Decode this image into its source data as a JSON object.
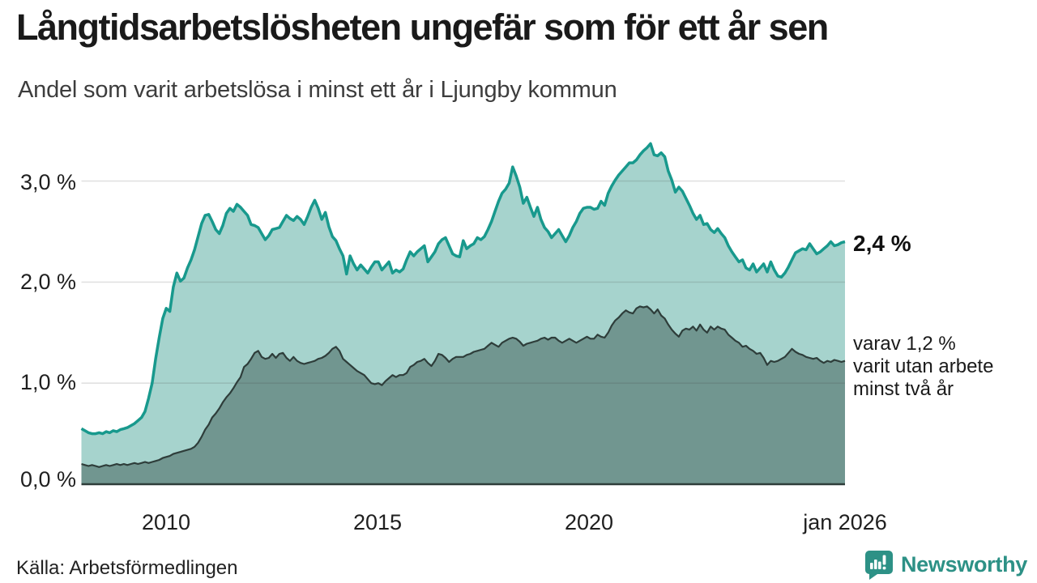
{
  "header": {
    "title": "Långtidsarbetslösheten ungefär som för ett år sen",
    "subtitle": "Andel som varit arbetslösa i minst ett år i Ljungby kommun"
  },
  "footer": {
    "source": "Källa: Arbetsförmedlingen",
    "brand": "Newsworthy"
  },
  "annotations": {
    "series1_end_label": "2,4 %",
    "series2_end_lines": [
      "varav 1,2 %",
      "varit utan arbete",
      "minst två år"
    ]
  },
  "colors": {
    "series1_line": "#18998d",
    "series1_fill": "#a6d3cd",
    "series2_line": "#2e3d3a",
    "series2_fill": "#719690",
    "gridline": "rgba(70,70,70,0.16)",
    "baseline": "#2e3d3a",
    "brand_teal": "#2d9186"
  },
  "chart_data": {
    "type": "area",
    "title": "Långtidsarbetslösheten ungefär som för ett år sen",
    "subtitle": "Andel som varit arbetslösa i minst ett år i Ljungby kommun",
    "unit": "%",
    "freq": "monthly",
    "x_start": "2008-01",
    "x_end": "2026-01",
    "ylim": [
      0,
      3.4
    ],
    "grid": "horizontal-only",
    "legend_position": "right-end-labels",
    "y_ticks": [
      {
        "value": 0,
        "label": "0,0 %"
      },
      {
        "value": 1,
        "label": "1,0 %"
      },
      {
        "value": 2,
        "label": "2,0 %"
      },
      {
        "value": 3,
        "label": "3,0 %"
      }
    ],
    "x_ticks": [
      {
        "year": 2010,
        "label": "2010"
      },
      {
        "year": 2015,
        "label": "2015"
      },
      {
        "year": 2020,
        "label": "2020"
      },
      {
        "year": 2026,
        "label": "jan 2026"
      }
    ],
    "series": [
      {
        "name": "Arbetslösa minst ett år",
        "end_value_label": "2,4 %",
        "values": [
          0.55,
          0.53,
          0.51,
          0.5,
          0.5,
          0.51,
          0.5,
          0.52,
          0.51,
          0.53,
          0.52,
          0.54,
          0.55,
          0.56,
          0.58,
          0.6,
          0.63,
          0.66,
          0.72,
          0.85,
          1.0,
          1.24,
          1.45,
          1.64,
          1.74,
          1.71,
          1.95,
          2.09,
          2.01,
          2.04,
          2.14,
          2.22,
          2.32,
          2.45,
          2.58,
          2.66,
          2.67,
          2.6,
          2.52,
          2.48,
          2.56,
          2.68,
          2.73,
          2.7,
          2.77,
          2.74,
          2.7,
          2.66,
          2.57,
          2.56,
          2.54,
          2.48,
          2.42,
          2.46,
          2.52,
          2.53,
          2.54,
          2.6,
          2.66,
          2.63,
          2.61,
          2.65,
          2.62,
          2.57,
          2.65,
          2.74,
          2.81,
          2.73,
          2.62,
          2.69,
          2.55,
          2.45,
          2.41,
          2.33,
          2.26,
          2.08,
          2.26,
          2.18,
          2.12,
          2.17,
          2.13,
          2.09,
          2.15,
          2.2,
          2.2,
          2.12,
          2.16,
          2.2,
          2.09,
          2.12,
          2.1,
          2.13,
          2.22,
          2.3,
          2.26,
          2.3,
          2.33,
          2.36,
          2.2,
          2.25,
          2.3,
          2.38,
          2.42,
          2.44,
          2.36,
          2.28,
          2.26,
          2.25,
          2.41,
          2.33,
          2.36,
          2.38,
          2.44,
          2.42,
          2.45,
          2.52,
          2.6,
          2.7,
          2.8,
          2.88,
          2.92,
          2.98,
          3.14,
          3.05,
          2.94,
          2.78,
          2.84,
          2.74,
          2.65,
          2.74,
          2.62,
          2.54,
          2.5,
          2.44,
          2.48,
          2.52,
          2.46,
          2.4,
          2.46,
          2.54,
          2.6,
          2.68,
          2.73,
          2.74,
          2.74,
          2.72,
          2.73,
          2.8,
          2.76,
          2.88,
          2.95,
          3.01,
          3.06,
          3.1,
          3.14,
          3.18,
          3.18,
          3.21,
          3.26,
          3.3,
          3.33,
          3.37,
          3.26,
          3.25,
          3.28,
          3.24,
          3.1,
          3.01,
          2.89,
          2.94,
          2.9,
          2.83,
          2.76,
          2.68,
          2.62,
          2.66,
          2.57,
          2.58,
          2.52,
          2.49,
          2.53,
          2.48,
          2.44,
          2.36,
          2.3,
          2.25,
          2.2,
          2.22,
          2.14,
          2.12,
          2.18,
          2.1,
          2.14,
          2.18,
          2.1,
          2.2,
          2.12,
          2.06,
          2.05,
          2.09,
          2.15,
          2.22,
          2.29,
          2.31,
          2.33,
          2.32,
          2.38,
          2.33,
          2.28,
          2.3,
          2.33,
          2.36,
          2.4,
          2.36,
          2.37,
          2.39,
          2.4
        ]
      },
      {
        "name": "varav utan arbete minst två år",
        "end_value_label": "1,2 %",
        "values": [
          0.2,
          0.19,
          0.18,
          0.19,
          0.18,
          0.17,
          0.18,
          0.19,
          0.18,
          0.19,
          0.2,
          0.19,
          0.2,
          0.19,
          0.2,
          0.21,
          0.2,
          0.21,
          0.22,
          0.21,
          0.22,
          0.23,
          0.24,
          0.26,
          0.27,
          0.28,
          0.3,
          0.31,
          0.32,
          0.33,
          0.34,
          0.35,
          0.37,
          0.41,
          0.47,
          0.54,
          0.59,
          0.66,
          0.7,
          0.75,
          0.81,
          0.86,
          0.9,
          0.95,
          1.01,
          1.06,
          1.16,
          1.19,
          1.24,
          1.3,
          1.32,
          1.26,
          1.24,
          1.25,
          1.29,
          1.25,
          1.29,
          1.3,
          1.25,
          1.22,
          1.26,
          1.22,
          1.2,
          1.19,
          1.2,
          1.21,
          1.22,
          1.24,
          1.25,
          1.27,
          1.3,
          1.34,
          1.36,
          1.32,
          1.24,
          1.21,
          1.18,
          1.15,
          1.12,
          1.1,
          1.08,
          1.04,
          1.0,
          0.99,
          1.0,
          0.98,
          1.02,
          1.05,
          1.08,
          1.06,
          1.08,
          1.08,
          1.1,
          1.16,
          1.18,
          1.21,
          1.22,
          1.24,
          1.2,
          1.17,
          1.22,
          1.29,
          1.28,
          1.25,
          1.21,
          1.24,
          1.26,
          1.26,
          1.26,
          1.28,
          1.29,
          1.31,
          1.32,
          1.33,
          1.34,
          1.37,
          1.4,
          1.38,
          1.36,
          1.4,
          1.42,
          1.44,
          1.45,
          1.44,
          1.41,
          1.37,
          1.39,
          1.4,
          1.41,
          1.42,
          1.44,
          1.45,
          1.43,
          1.45,
          1.45,
          1.42,
          1.4,
          1.42,
          1.44,
          1.42,
          1.4,
          1.42,
          1.44,
          1.46,
          1.44,
          1.44,
          1.48,
          1.46,
          1.45,
          1.5,
          1.57,
          1.62,
          1.65,
          1.69,
          1.72,
          1.7,
          1.69,
          1.74,
          1.76,
          1.75,
          1.76,
          1.73,
          1.69,
          1.73,
          1.67,
          1.64,
          1.58,
          1.53,
          1.49,
          1.46,
          1.52,
          1.54,
          1.53,
          1.56,
          1.52,
          1.58,
          1.53,
          1.5,
          1.56,
          1.53,
          1.56,
          1.54,
          1.53,
          1.48,
          1.45,
          1.42,
          1.4,
          1.36,
          1.37,
          1.34,
          1.32,
          1.29,
          1.3,
          1.25,
          1.18,
          1.22,
          1.21,
          1.22,
          1.24,
          1.26,
          1.3,
          1.34,
          1.31,
          1.29,
          1.28,
          1.26,
          1.25,
          1.24,
          1.25,
          1.22,
          1.2,
          1.22,
          1.21,
          1.23,
          1.22,
          1.21,
          1.22
        ]
      }
    ]
  }
}
